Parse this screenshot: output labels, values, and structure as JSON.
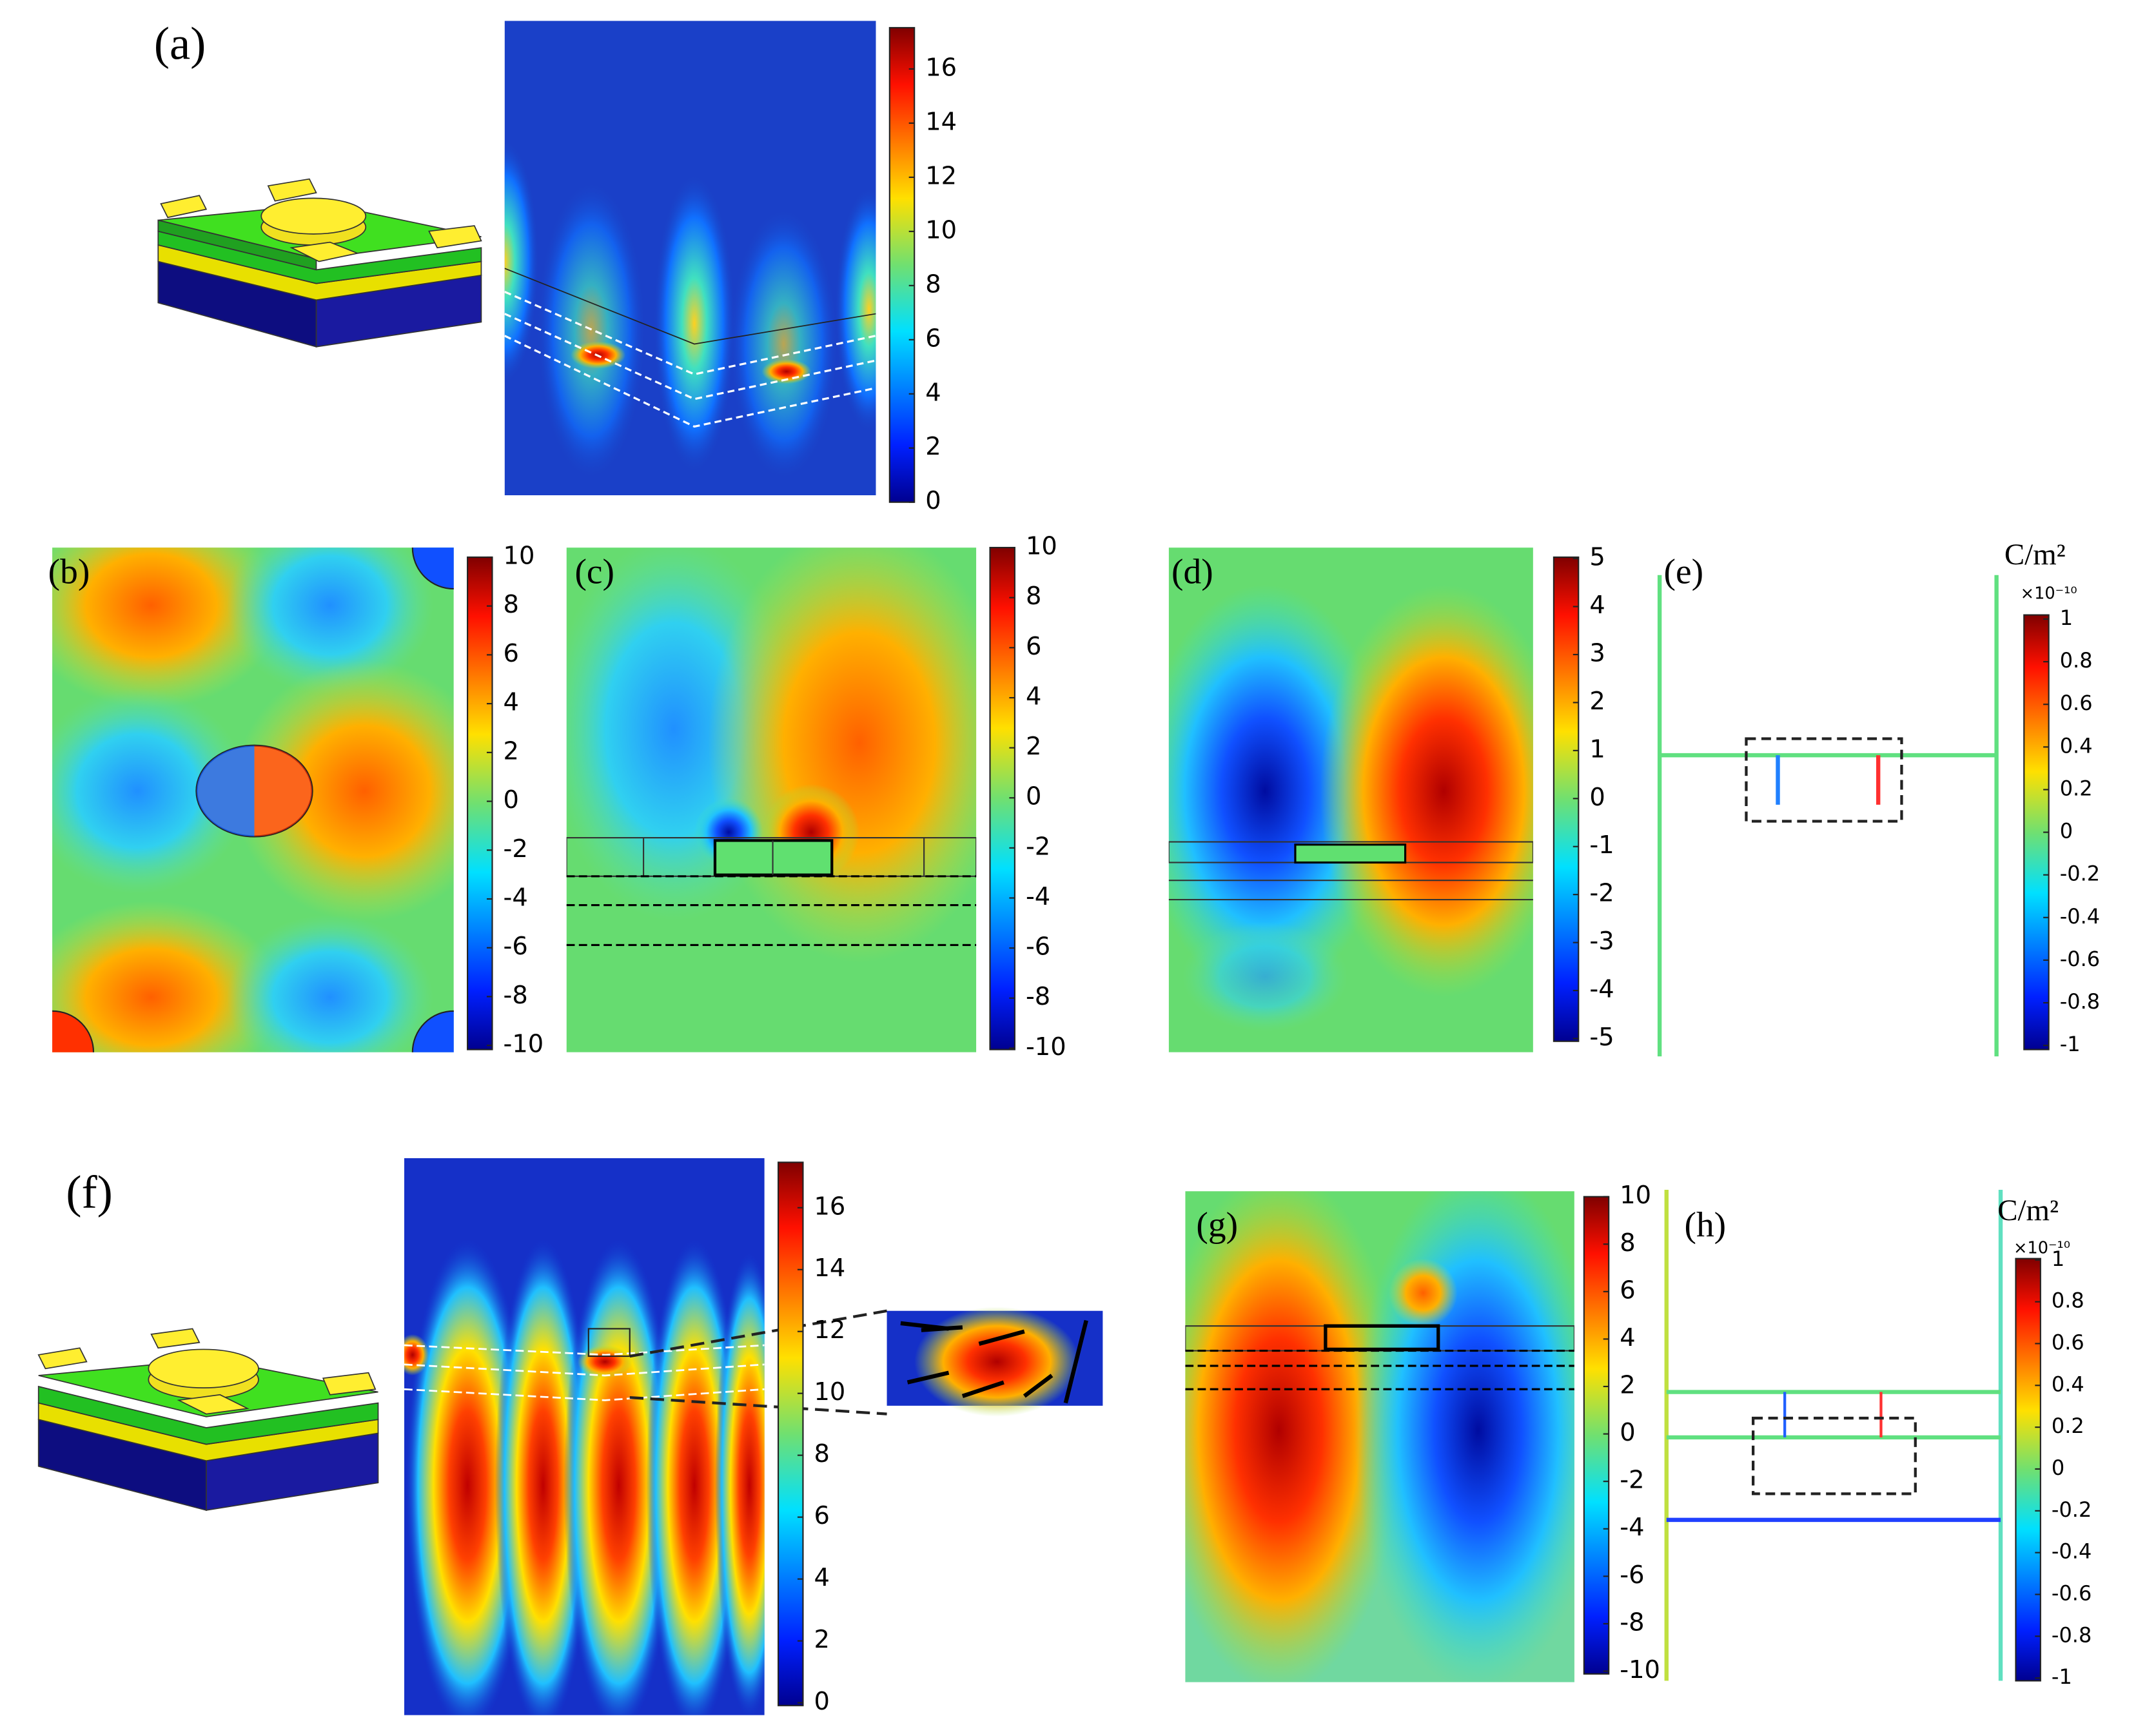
{
  "panels": {
    "a": {
      "label": "(a)",
      "colorbar": {
        "ticks": [
          "0",
          "2",
          "4",
          "6",
          "8",
          "10",
          "12",
          "14",
          "16"
        ]
      }
    },
    "b": {
      "label": "(b)",
      "colorbar": {
        "ticks": [
          "-10",
          "-8",
          "-6",
          "-4",
          "-2",
          "0",
          "2",
          "4",
          "6",
          "8",
          "10"
        ]
      }
    },
    "c": {
      "label": "(c)",
      "colorbar": {
        "ticks": [
          "-10",
          "-8",
          "-6",
          "-4",
          "-2",
          "0",
          "2",
          "4",
          "6",
          "8",
          "10"
        ]
      }
    },
    "d": {
      "label": "(d)",
      "colorbar": {
        "ticks": [
          "-5",
          "-4",
          "-3",
          "-2",
          "-1",
          "0",
          "1",
          "2",
          "3",
          "4",
          "5"
        ]
      }
    },
    "e": {
      "label": "(e)",
      "unit": "C/m²",
      "scale": "×10⁻¹⁰",
      "colorbar": {
        "ticks": [
          "-1",
          "-0.8",
          "-0.6",
          "-0.4",
          "-0.2",
          "0",
          "0.2",
          "0.4",
          "0.6",
          "0.8",
          "1"
        ]
      }
    },
    "f": {
      "label": "(f)",
      "colorbar": {
        "ticks": [
          "0",
          "2",
          "4",
          "6",
          "8",
          "10",
          "12",
          "14",
          "16"
        ]
      }
    },
    "g": {
      "label": "(g)",
      "colorbar": {
        "ticks": [
          "-10",
          "-8",
          "-6",
          "-4",
          "-2",
          "0",
          "2",
          "4",
          "6",
          "8",
          "10"
        ]
      }
    },
    "h": {
      "label": "(h)",
      "unit": "C/m²",
      "scale": "×10⁻¹⁰",
      "colorbar": {
        "ticks": [
          "-1",
          "-0.8",
          "-0.6",
          "-0.4",
          "-0.2",
          "0",
          "0.2",
          "0.4",
          "0.6",
          "0.8",
          "1"
        ]
      }
    }
  }
}
